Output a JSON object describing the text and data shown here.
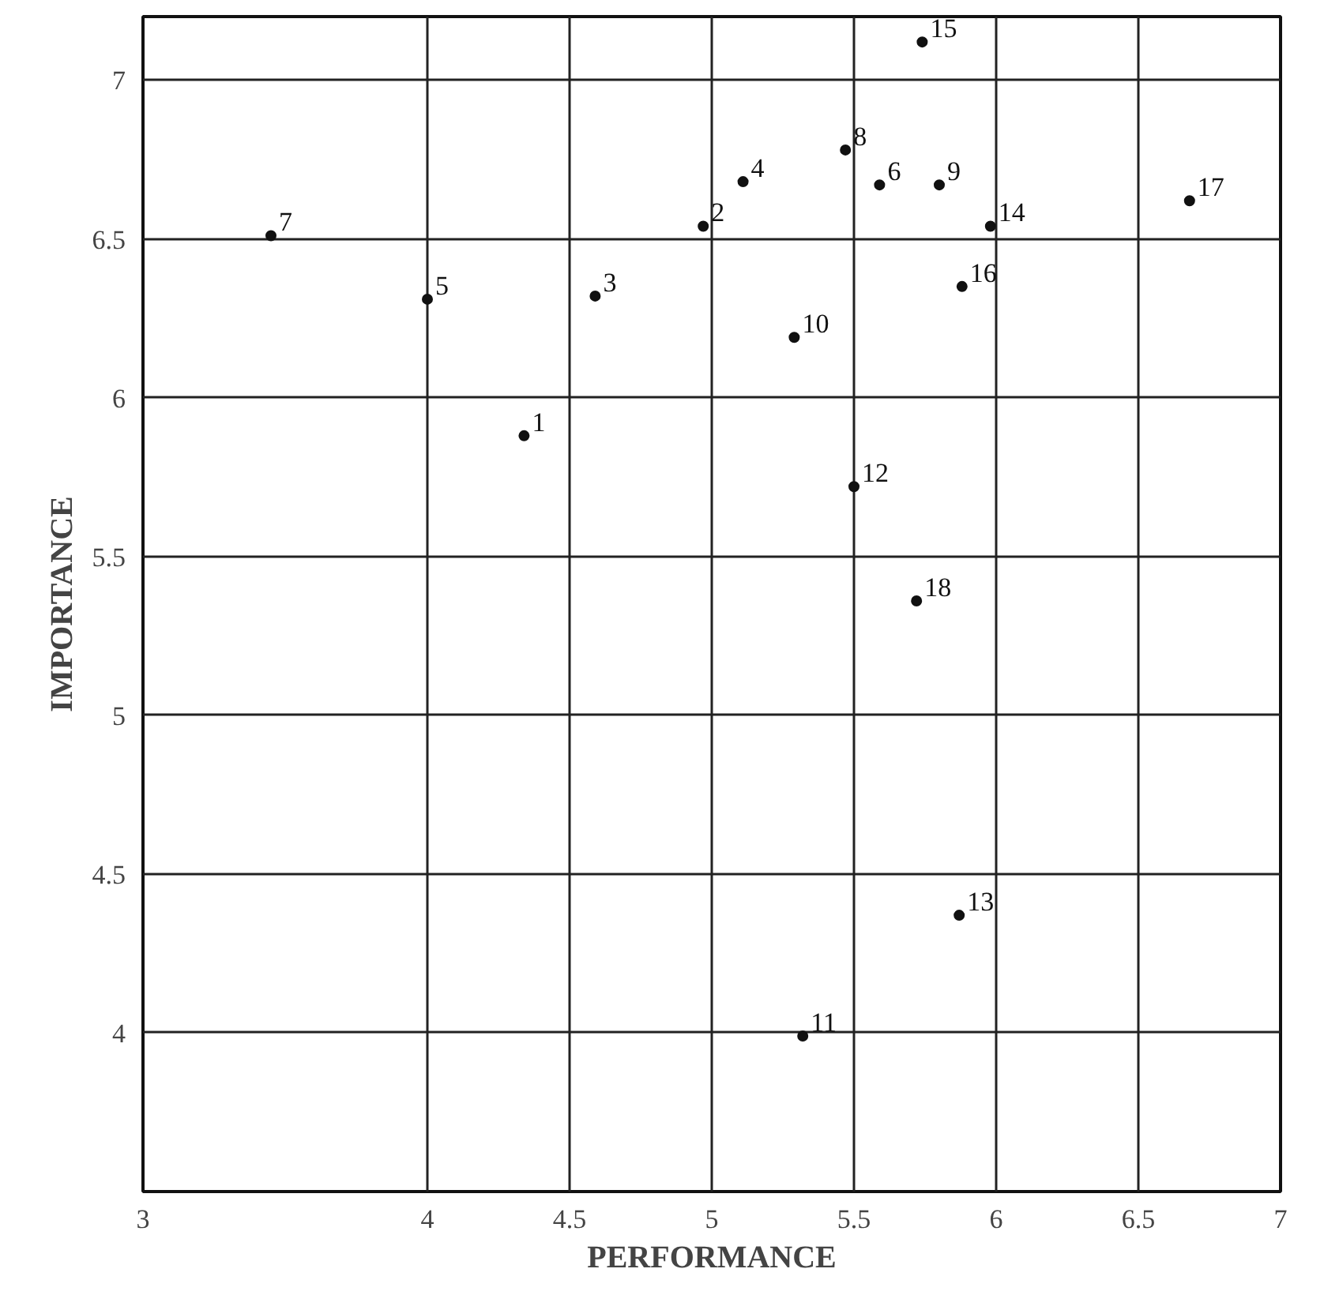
{
  "chart_data": {
    "type": "scatter",
    "xlabel": "PERFORMANCE",
    "ylabel": "IMPORTANCE",
    "marker": "circle",
    "series": [
      {
        "name": "1",
        "color": "#111111",
        "x": [
          4.34
        ],
        "values": [
          5.88
        ]
      },
      {
        "name": "2",
        "color": "#111111",
        "x": [
          4.97
        ],
        "values": [
          6.54
        ]
      },
      {
        "name": "3",
        "color": "#111111",
        "x": [
          4.59
        ],
        "values": [
          6.32
        ]
      },
      {
        "name": "4",
        "color": "#111111",
        "x": [
          5.11
        ],
        "values": [
          6.68
        ]
      },
      {
        "name": "5",
        "color": "#111111",
        "x": [
          4.0
        ],
        "values": [
          6.31
        ]
      },
      {
        "name": "6",
        "color": "#111111",
        "x": [
          5.59
        ],
        "values": [
          6.67
        ]
      },
      {
        "name": "7",
        "color": "#111111",
        "x": [
          3.45
        ],
        "values": [
          6.51
        ]
      },
      {
        "name": "8",
        "color": "#111111",
        "x": [
          5.47
        ],
        "values": [
          6.78
        ]
      },
      {
        "name": "9",
        "color": "#111111",
        "x": [
          5.8
        ],
        "values": [
          6.67
        ]
      },
      {
        "name": "10",
        "color": "#111111",
        "x": [
          5.29
        ],
        "values": [
          6.19
        ]
      },
      {
        "name": "11",
        "color": "#111111",
        "x": [
          5.32
        ],
        "values": [
          3.99
        ]
      },
      {
        "name": "12",
        "color": "#111111",
        "x": [
          5.5
        ],
        "values": [
          5.72
        ]
      },
      {
        "name": "13",
        "color": "#111111",
        "x": [
          5.87
        ],
        "values": [
          4.37
        ]
      },
      {
        "name": "14",
        "color": "#111111",
        "x": [
          5.98
        ],
        "values": [
          6.54
        ]
      },
      {
        "name": "15",
        "color": "#111111",
        "x": [
          5.74
        ],
        "values": [
          7.12
        ]
      },
      {
        "name": "16",
        "color": "#111111",
        "x": [
          5.88
        ],
        "values": [
          6.35
        ]
      },
      {
        "name": "17",
        "color": "#111111",
        "x": [
          6.68
        ],
        "values": [
          6.62
        ]
      },
      {
        "name": "18",
        "color": "#111111",
        "x": [
          5.72
        ],
        "values": [
          5.36
        ]
      }
    ],
    "xlim": [
      3,
      7
    ],
    "xticks": [
      3,
      4,
      4.5,
      5,
      5.5,
      6,
      6.5,
      7
    ],
    "ylim": [
      3.5,
      7.2
    ],
    "yticks": [
      4,
      4.5,
      5,
      5.5,
      6,
      6.5,
      7
    ],
    "grid": true
  }
}
